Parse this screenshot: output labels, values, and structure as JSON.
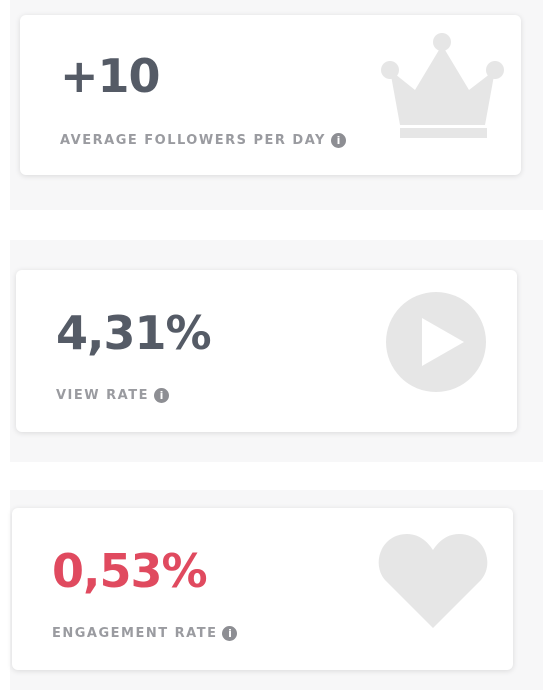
{
  "cards": [
    {
      "value": "+10",
      "label": "AVERAGE FOLLOWERS PER DAY"
    },
    {
      "value": "4,31%",
      "label": "VIEW RATE"
    },
    {
      "value": "0,53%",
      "label": "ENGAGEMENT RATE"
    }
  ]
}
